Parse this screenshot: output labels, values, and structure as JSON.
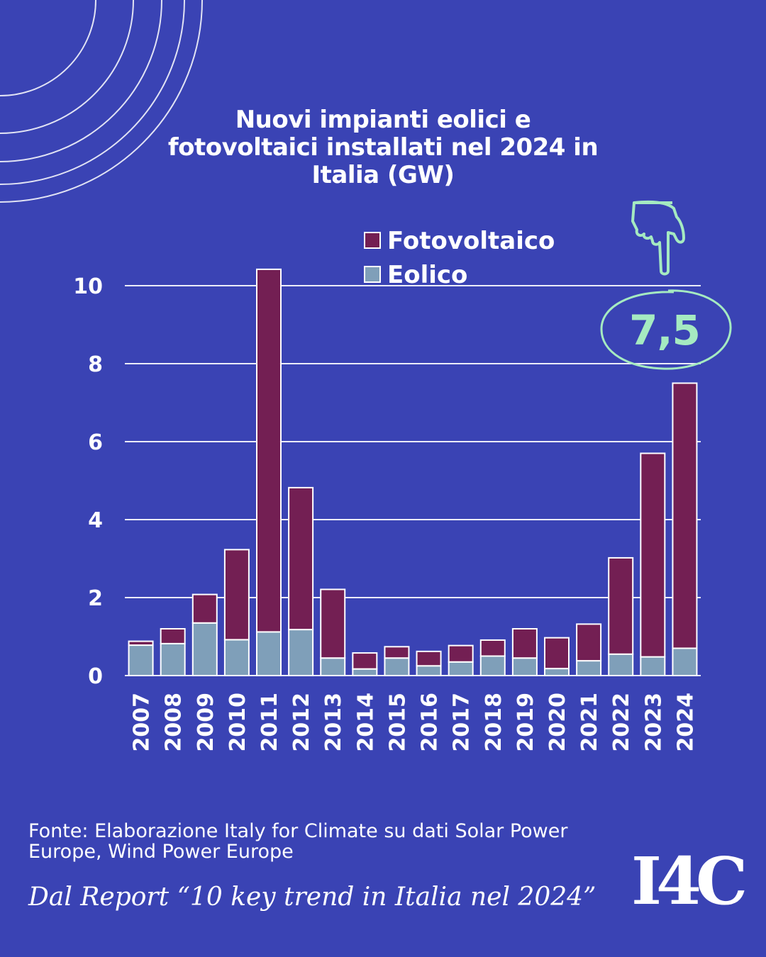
{
  "title_lines": [
    "Nuovi impianti eolici e",
    "fotovoltaici installati nel 2024 in",
    "Italia (GW)"
  ],
  "source_lines": [
    "Fonte: Elaborazione Italy for Climate su dati Solar Power",
    "Europe, Wind Power Europe"
  ],
  "report": "Dal Report “10 key trend in Italia nel 2024”",
  "logo_text": "I4C",
  "callout_value": "7,5",
  "colors": {
    "background": "#3a43b4",
    "fotovoltaico": "#731f53",
    "eolico": "#7f9fb9",
    "callout": "#a5eac1",
    "grid": "#ffffff"
  },
  "icons": [
    "pointing-hand-icon",
    "decorative-arcs",
    "callout-ellipse"
  ],
  "chart_data": {
    "type": "bar",
    "stacked": true,
    "categories": [
      "2007",
      "2008",
      "2009",
      "2010",
      "2011",
      "2012",
      "2013",
      "2014",
      "2015",
      "2016",
      "2017",
      "2018",
      "2019",
      "2020",
      "2021",
      "2022",
      "2023",
      "2024"
    ],
    "series": [
      {
        "name": "Eolico",
        "color": "#7f9fb9",
        "values": [
          0.78,
          0.82,
          1.35,
          0.92,
          1.12,
          1.18,
          0.45,
          0.17,
          0.45,
          0.25,
          0.35,
          0.5,
          0.45,
          0.18,
          0.38,
          0.55,
          0.48,
          0.7
        ]
      },
      {
        "name": "Fotovoltaico",
        "color": "#731f53",
        "values": [
          0.1,
          0.38,
          0.73,
          2.31,
          9.3,
          3.64,
          1.76,
          0.41,
          0.29,
          0.37,
          0.42,
          0.41,
          0.75,
          0.79,
          0.94,
          2.47,
          5.22,
          6.8
        ]
      }
    ],
    "yticks": [
      "0",
      "2",
      "4",
      "6",
      "8",
      "10"
    ],
    "ylim": [
      0,
      11
    ],
    "legend": {
      "position": "top-right",
      "entries": [
        "Fotovoltaico",
        "Eolico"
      ]
    },
    "grid": true,
    "xlabel": "",
    "ylabel": ""
  }
}
